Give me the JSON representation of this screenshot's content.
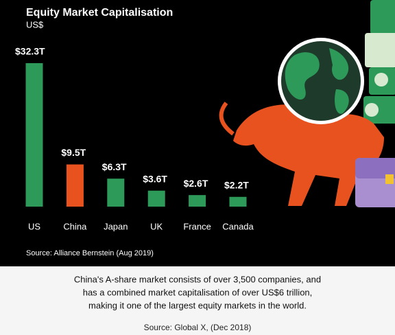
{
  "chart_data": {
    "type": "bar",
    "title": "Equity Market Capitalisation",
    "subtitle": "US$",
    "categories": [
      "US",
      "China",
      "Japan",
      "UK",
      "France",
      "Canada"
    ],
    "values": [
      32.3,
      9.5,
      6.3,
      3.6,
      2.6,
      2.2
    ],
    "value_labels": [
      "$32.3T",
      "$9.5T",
      "$6.3T",
      "$3.6T",
      "$2.6T",
      "$2.2T"
    ],
    "colors": [
      "#2e9a5a",
      "#e8521f",
      "#2e9a5a",
      "#2e9a5a",
      "#2e9a5a",
      "#2e9a5a"
    ],
    "source": "Source: Alliance Bernstein (Aug 2019)",
    "note": [
      "China's A-share market consists of over 3,500 companies, and",
      "has a combined market capitalisation of over US$6 trillion,",
      "making it one of the largest equity markets in the world."
    ],
    "note_source": "Source: Global X, (Dec 2018)"
  }
}
